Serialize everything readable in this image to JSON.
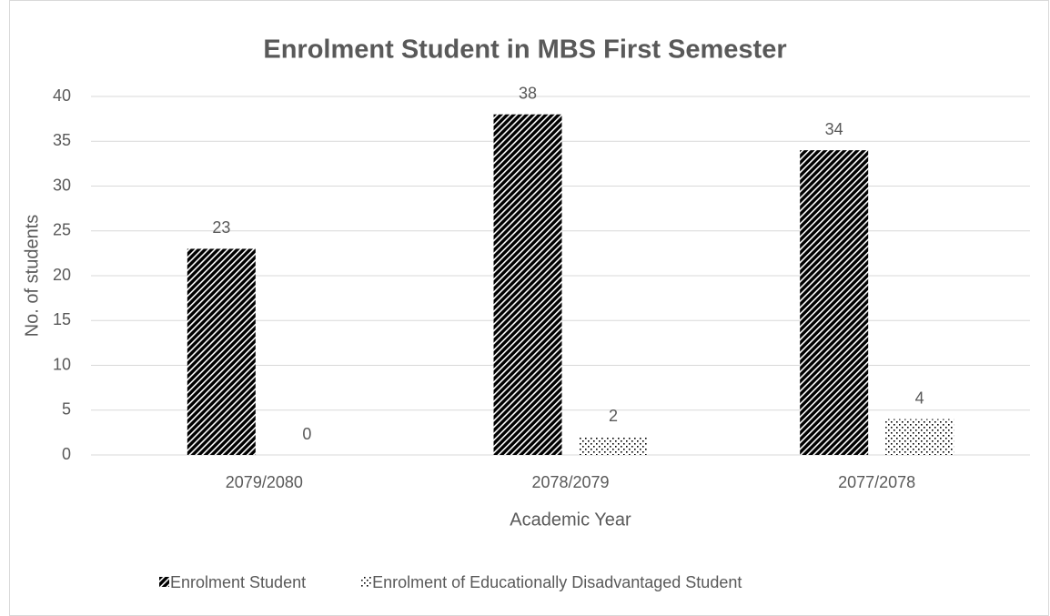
{
  "chart_data": {
    "type": "bar",
    "title": "Enrolment Student in MBS First Semester",
    "x_label": "Academic Year",
    "y_label": "No. of students",
    "categories": [
      "2079/2080",
      "2078/2079",
      "2077/2078"
    ],
    "series": [
      {
        "name": "Enrolment Student",
        "color": "#000000",
        "pattern": "diagonal",
        "values": [
          23,
          38,
          34
        ]
      },
      {
        "name": "Enrolment of Educationally Disadvantaged Student",
        "color": "#000000",
        "pattern": "dots",
        "values": [
          0,
          2,
          4
        ]
      }
    ],
    "ylim": [
      0,
      40
    ],
    "yticks": [
      0,
      5,
      10,
      15,
      20,
      25,
      30,
      35,
      40
    ],
    "grid": true,
    "legend": "bottom"
  }
}
